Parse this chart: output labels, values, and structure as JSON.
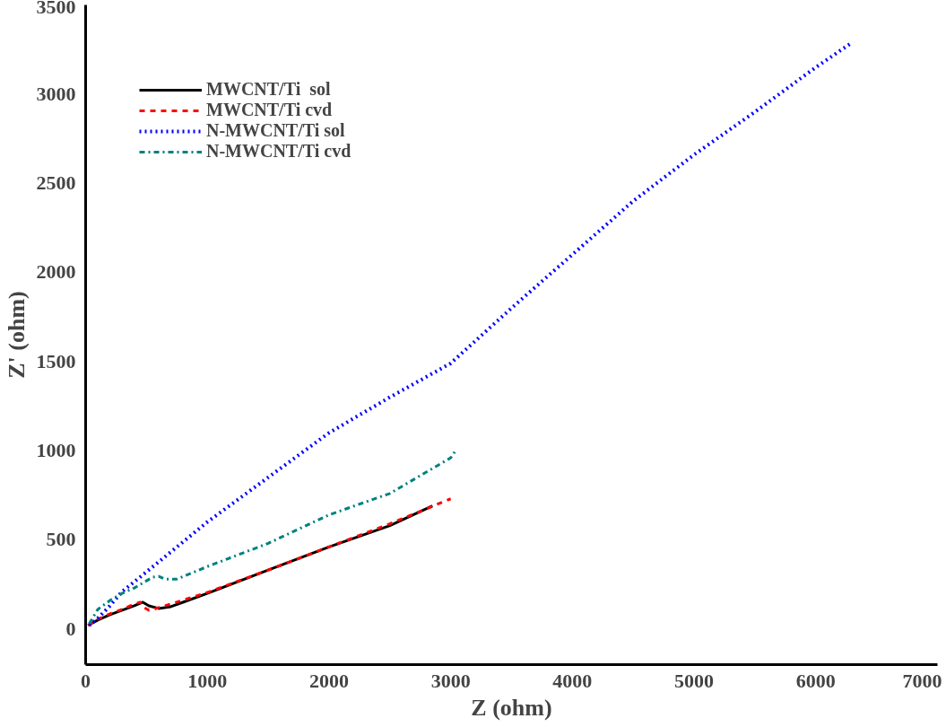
{
  "chart_data": {
    "type": "line",
    "xlabel": "Z (ohm)",
    "ylabel": "Z' (ohm)",
    "xlim": [
      0,
      7000
    ],
    "ylim": [
      -200,
      3500
    ],
    "xticks": [
      0,
      1000,
      2000,
      3000,
      4000,
      5000,
      6000,
      7000
    ],
    "yticks": [
      0,
      500,
      1000,
      1500,
      2000,
      2500,
      3000,
      3500
    ],
    "grid": false,
    "legend": "top left",
    "series": [
      {
        "name": "MWCNT/Ti  sol",
        "color": "#000000",
        "line_style": "solid",
        "x": [
          20,
          100,
          200,
          300,
          400,
          470,
          520,
          600,
          700,
          800,
          1000,
          1500,
          2000,
          2500,
          2850
        ],
        "values": [
          20,
          50,
          80,
          105,
          130,
          150,
          130,
          115,
          125,
          150,
          200,
          330,
          460,
          580,
          690
        ]
      },
      {
        "name": "MWCNT/Ti cvd",
        "color": "#ff0000",
        "line_style": "dashed",
        "x": [
          20,
          100,
          200,
          300,
          400,
          450,
          480,
          520,
          560,
          600,
          700,
          1000,
          1500,
          2000,
          2500,
          3000
        ],
        "values": [
          20,
          55,
          85,
          110,
          140,
          150,
          120,
          105,
          110,
          120,
          140,
          205,
          330,
          460,
          590,
          730
        ]
      },
      {
        "name": "N-MWCNT/Ti sol",
        "color": "#0000ff",
        "line_style": "dotted",
        "x": [
          30,
          100,
          200,
          300,
          500,
          1000,
          1500,
          2000,
          2500,
          3000,
          3500,
          4000,
          4500,
          5000,
          5500,
          6000,
          6300
        ],
        "values": [
          20,
          60,
          130,
          210,
          320,
          600,
          850,
          1100,
          1300,
          1490,
          1800,
          2100,
          2400,
          2660,
          2900,
          3150,
          3290
        ]
      },
      {
        "name": "N-MWCNT/Ti cvd",
        "color": "#008080",
        "line_style": "dashdot",
        "x": [
          30,
          100,
          200,
          300,
          400,
          500,
          550,
          600,
          650,
          750,
          1000,
          1500,
          2000,
          2500,
          3000,
          3050
        ],
        "values": [
          30,
          110,
          160,
          200,
          230,
          270,
          290,
          295,
          280,
          280,
          350,
          480,
          640,
          760,
          960,
          1010
        ]
      }
    ]
  }
}
